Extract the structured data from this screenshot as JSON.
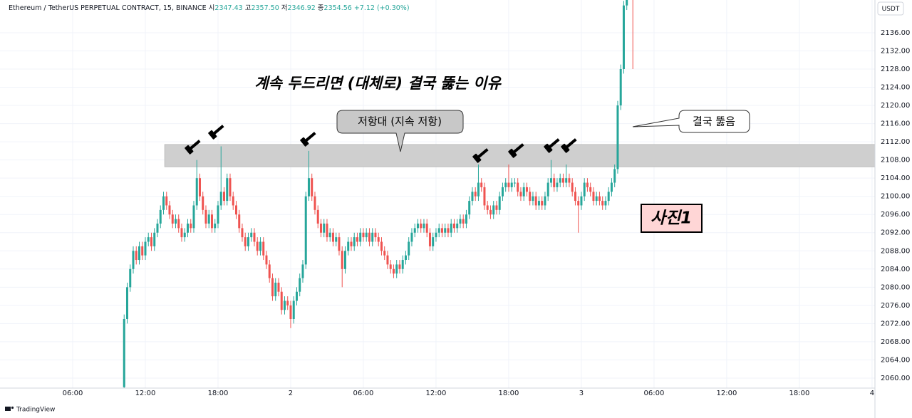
{
  "chart_data": {
    "type": "candlestick",
    "title": "계속 두드리면 (대체로) 결국 뚫는 이유",
    "header": {
      "symbol": "Ethereum / TetherUS PERPETUAL CONTRACT, 15, BINANCE",
      "items": [
        {
          "label": "시",
          "value": "2347.43"
        },
        {
          "label": "고",
          "value": "2357.50"
        },
        {
          "label": "저",
          "value": "2346.92"
        },
        {
          "label": "종",
          "value": "2354.56"
        }
      ],
      "change": "+7.12 (+0.30%)"
    },
    "currency": "USDT",
    "watermark": "TradingView",
    "annotations": {
      "resistance": "저항대 (지속 저항)",
      "breakout": "결국 뚫음",
      "photo": "사진1"
    },
    "resistance_zone": {
      "y": [
        2106.5,
        2111.4
      ],
      "x": [
        13.6,
        72.24
      ]
    },
    "up_color": "#26a69a",
    "down_color": "#ef5350",
    "xlim": [
      0,
      72.24
    ],
    "ylim": [
      2057.8,
      2143.2
    ],
    "xticks": [
      {
        "value": 6,
        "label": "06:00"
      },
      {
        "value": 12,
        "label": "12:00"
      },
      {
        "value": 18,
        "label": "18:00"
      },
      {
        "value": 24,
        "label": "2"
      },
      {
        "value": 30,
        "label": "06:00"
      },
      {
        "value": 36,
        "label": "12:00"
      },
      {
        "value": 42,
        "label": "18:00"
      },
      {
        "value": 48,
        "label": "3"
      },
      {
        "value": 54,
        "label": "06:00"
      },
      {
        "value": 60,
        "label": "12:00"
      },
      {
        "value": 66,
        "label": "18:00"
      },
      {
        "value": 72,
        "label": "4"
      }
    ],
    "yticks": [
      {
        "value": 2060,
        "label": "2060.00"
      },
      {
        "value": 2064,
        "label": "2064.00"
      },
      {
        "value": 2068,
        "label": "2068.00"
      },
      {
        "value": 2072,
        "label": "2072.00"
      },
      {
        "value": 2076,
        "label": "2076.00"
      },
      {
        "value": 2080,
        "label": "2080.00"
      },
      {
        "value": 2084,
        "label": "2084.00"
      },
      {
        "value": 2088,
        "label": "2088.00"
      },
      {
        "value": 2092,
        "label": "2092.00"
      },
      {
        "value": 2096,
        "label": "2096.00"
      },
      {
        "value": 2100,
        "label": "2100.00"
      },
      {
        "value": 2104,
        "label": "2104.00"
      },
      {
        "value": 2108,
        "label": "2108.00"
      },
      {
        "value": 2112,
        "label": "2112.00"
      },
      {
        "value": 2116,
        "label": "2116.00"
      },
      {
        "value": 2120,
        "label": "2120.00"
      },
      {
        "value": 2124,
        "label": "2124.00"
      },
      {
        "value": 2128,
        "label": "2128.00"
      },
      {
        "value": 2132,
        "label": "2132.00"
      },
      {
        "value": 2136,
        "label": "2136.00"
      }
    ],
    "grid": true,
    "x": [
      10.25,
      10.5,
      10.75,
      11,
      11.25,
      11.5,
      11.75,
      12,
      12.25,
      12.5,
      12.75,
      13,
      13.25,
      13.5,
      13.75,
      14,
      14.25,
      14.5,
      14.75,
      15,
      15.25,
      15.5,
      15.75,
      16,
      16.25,
      16.5,
      16.75,
      17,
      17.25,
      17.5,
      17.75,
      18,
      18.25,
      18.5,
      18.75,
      19,
      19.25,
      19.5,
      19.75,
      20,
      20.25,
      20.5,
      20.75,
      21,
      21.25,
      21.5,
      21.75,
      22,
      22.25,
      22.5,
      22.75,
      23,
      23.25,
      23.5,
      23.75,
      24,
      24.25,
      24.5,
      24.75,
      25,
      25.25,
      25.5,
      25.75,
      26,
      26.25,
      26.5,
      26.75,
      27,
      27.25,
      27.5,
      27.75,
      28,
      28.25,
      28.5,
      28.75,
      29,
      29.25,
      29.5,
      29.75,
      30,
      30.25,
      30.5,
      30.75,
      31,
      31.25,
      31.5,
      31.75,
      32,
      32.25,
      32.5,
      32.75,
      33,
      33.25,
      33.5,
      33.75,
      34,
      34.25,
      34.5,
      34.75,
      35,
      35.25,
      35.5,
      35.75,
      36,
      36.25,
      36.5,
      36.75,
      37,
      37.25,
      37.5,
      37.75,
      38,
      38.25,
      38.5,
      38.75,
      39,
      39.25,
      39.5,
      39.75,
      40,
      40.25,
      40.5,
      40.75,
      41,
      41.25,
      41.5,
      41.75,
      42,
      42.25,
      42.5,
      42.75,
      43,
      43.25,
      43.5,
      43.75,
      44,
      44.25,
      44.5,
      44.75,
      45,
      45.25,
      45.5,
      45.75,
      46,
      46.25,
      46.5,
      46.75,
      47,
      47.25,
      47.5,
      47.75,
      48,
      48.25,
      48.5,
      48.75,
      49,
      49.25,
      49.5,
      49.75,
      50,
      50.25,
      50.5,
      50.75,
      51,
      51.25,
      51.5,
      51.75,
      52,
      52.25
    ],
    "open": [
      2058,
      2073,
      2080,
      2084,
      2088,
      2086,
      2089,
      2087,
      2090,
      2091,
      2089,
      2092,
      2094,
      2097,
      2100,
      2098,
      2096,
      2094,
      2095,
      2093,
      2091,
      2092,
      2094,
      2093,
      2098,
      2104,
      2100,
      2097,
      2094,
      2096,
      2093,
      2094,
      2098,
      2101,
      2099,
      2104,
      2100,
      2098,
      2096,
      2093,
      2091,
      2089,
      2091,
      2092,
      2090,
      2088,
      2090,
      2087,
      2085,
      2082,
      2078,
      2081,
      2079,
      2075,
      2077,
      2076,
      2073,
      2077,
      2079,
      2082,
      2085,
      2100,
      2104,
      2100,
      2097,
      2094,
      2092,
      2094,
      2091,
      2092,
      2090,
      2091,
      2088,
      2084,
      2088,
      2090,
      2089,
      2091,
      2090,
      2092,
      2091,
      2092,
      2090,
      2092,
      2091,
      2090,
      2088,
      2087,
      2085,
      2084,
      2083,
      2085,
      2084,
      2086,
      2087,
      2090,
      2092,
      2093,
      2094,
      2093,
      2094,
      2092,
      2089,
      2091,
      2092,
      2093,
      2092,
      2093,
      2092,
      2094,
      2093,
      2094,
      2095,
      2094,
      2096,
      2099,
      2101,
      2100,
      2103,
      2102,
      2098,
      2097,
      2096,
      2098,
      2097,
      2100,
      2102,
      2103,
      2102,
      2103,
      2103,
      2101,
      2100,
      2102,
      2101,
      2099,
      2100,
      2098,
      2099,
      2098,
      2100,
      2103,
      2104,
      2102,
      2103,
      2104,
      2103,
      2104,
      2103,
      2101,
      2099,
      2098,
      2100,
      2103,
      2102,
      2101,
      2099,
      2100,
      2099,
      2098,
      2099,
      2101,
      2103,
      2106,
      2120,
      2128,
      2142,
      2146,
      2150
    ],
    "high": [
      2074,
      2081,
      2085,
      2089,
      2089,
      2090,
      2090,
      2091,
      2092,
      2092,
      2093,
      2095,
      2098,
      2101,
      2101,
      2099,
      2097,
      2096,
      2096,
      2094,
      2093,
      2095,
      2095,
      2099,
      2108,
      2105,
      2101,
      2098,
      2097,
      2097,
      2095,
      2099,
      2111,
      2102,
      2105,
      2105,
      2101,
      2099,
      2097,
      2094,
      2092,
      2092,
      2093,
      2093,
      2091,
      2091,
      2091,
      2088,
      2086,
      2083,
      2082,
      2082,
      2080,
      2078,
      2078,
      2077,
      2078,
      2080,
      2083,
      2086,
      2101,
      2110,
      2105,
      2101,
      2098,
      2095,
      2095,
      2095,
      2093,
      2093,
      2092,
      2092,
      2089,
      2089,
      2091,
      2091,
      2092,
      2092,
      2093,
      2093,
      2093,
      2093,
      2093,
      2093,
      2092,
      2091,
      2089,
      2088,
      2086,
      2085,
      2086,
      2086,
      2087,
      2088,
      2091,
      2093,
      2094,
      2095,
      2095,
      2095,
      2095,
      2093,
      2092,
      2093,
      2094,
      2094,
      2094,
      2094,
      2095,
      2095,
      2095,
      2096,
      2096,
      2097,
      2100,
      2102,
      2102,
      2107,
      2104,
      2103,
      2099,
      2098,
      2099,
      2099,
      2101,
      2103,
      2104,
      2107,
      2104,
      2104,
      2104,
      2102,
      2103,
      2103,
      2102,
      2101,
      2101,
      2100,
      2100,
      2101,
      2104,
      2108,
      2105,
      2104,
      2105,
      2105,
      2107,
      2105,
      2104,
      2102,
      2100,
      2101,
      2104,
      2104,
      2103,
      2102,
      2101,
      2101,
      2100,
      2100,
      2102,
      2104,
      2107,
      2121,
      2129,
      2143,
      2147,
      2151,
      2151
    ],
    "low": [
      2057,
      2072,
      2079,
      2083,
      2085,
      2085,
      2086,
      2086,
      2089,
      2088,
      2088,
      2091,
      2093,
      2096,
      2097,
      2095,
      2093,
      2093,
      2092,
      2090,
      2090,
      2091,
      2092,
      2092,
      2097,
      2099,
      2096,
      2093,
      2093,
      2092,
      2092,
      2093,
      2097,
      2098,
      2098,
      2099,
      2097,
      2095,
      2092,
      2090,
      2088,
      2088,
      2090,
      2089,
      2087,
      2087,
      2086,
      2084,
      2081,
      2077,
      2077,
      2078,
      2074,
      2074,
      2075,
      2071,
      2072,
      2076,
      2078,
      2081,
      2084,
      2099,
      2099,
      2096,
      2093,
      2091,
      2091,
      2090,
      2090,
      2089,
      2089,
      2087,
      2080,
      2083,
      2087,
      2088,
      2088,
      2089,
      2089,
      2090,
      2090,
      2089,
      2089,
      2090,
      2089,
      2087,
      2086,
      2084,
      2083,
      2082,
      2082,
      2083,
      2083,
      2085,
      2086,
      2089,
      2091,
      2092,
      2092,
      2092,
      2091,
      2088,
      2088,
      2090,
      2091,
      2091,
      2091,
      2091,
      2091,
      2092,
      2092,
      2093,
      2093,
      2093,
      2095,
      2098,
      2099,
      2099,
      2101,
      2097,
      2096,
      2095,
      2095,
      2096,
      2096,
      2099,
      2101,
      2101,
      2101,
      2102,
      2100,
      2099,
      2099,
      2100,
      2098,
      2098,
      2097,
      2097,
      2097,
      2097,
      2099,
      2102,
      2101,
      2101,
      2102,
      2102,
      2102,
      2102,
      2100,
      2098,
      2092,
      2097,
      2099,
      2101,
      2100,
      2098,
      2098,
      2098,
      2097,
      2097,
      2098,
      2100,
      2102,
      2105,
      2119,
      2127,
      2141,
      2145,
      2128
    ],
    "close": [
      2073,
      2080,
      2084,
      2088,
      2086,
      2089,
      2087,
      2090,
      2091,
      2089,
      2092,
      2094,
      2097,
      2100,
      2098,
      2096,
      2094,
      2095,
      2093,
      2091,
      2092,
      2094,
      2093,
      2098,
      2104,
      2100,
      2097,
      2094,
      2096,
      2093,
      2094,
      2098,
      2101,
      2099,
      2104,
      2100,
      2098,
      2096,
      2093,
      2091,
      2089,
      2091,
      2092,
      2090,
      2088,
      2090,
      2087,
      2085,
      2082,
      2078,
      2081,
      2079,
      2075,
      2077,
      2076,
      2073,
      2077,
      2079,
      2082,
      2085,
      2100,
      2104,
      2100,
      2097,
      2094,
      2092,
      2094,
      2091,
      2092,
      2090,
      2091,
      2088,
      2084,
      2088,
      2090,
      2089,
      2091,
      2090,
      2092,
      2091,
      2092,
      2090,
      2092,
      2091,
      2090,
      2088,
      2087,
      2085,
      2084,
      2083,
      2085,
      2084,
      2086,
      2087,
      2090,
      2092,
      2093,
      2094,
      2093,
      2094,
      2092,
      2089,
      2091,
      2092,
      2093,
      2092,
      2093,
      2092,
      2094,
      2093,
      2094,
      2095,
      2094,
      2096,
      2099,
      2101,
      2100,
      2103,
      2102,
      2098,
      2097,
      2096,
      2098,
      2097,
      2100,
      2102,
      2103,
      2102,
      2103,
      2103,
      2101,
      2100,
      2102,
      2101,
      2099,
      2100,
      2098,
      2099,
      2098,
      2100,
      2103,
      2104,
      2102,
      2103,
      2104,
      2103,
      2104,
      2103,
      2101,
      2099,
      2098,
      2100,
      2103,
      2102,
      2101,
      2099,
      2100,
      2099,
      2098,
      2099,
      2101,
      2103,
      2106,
      2120,
      2128,
      2142,
      2146,
      2150,
      2148
    ]
  }
}
